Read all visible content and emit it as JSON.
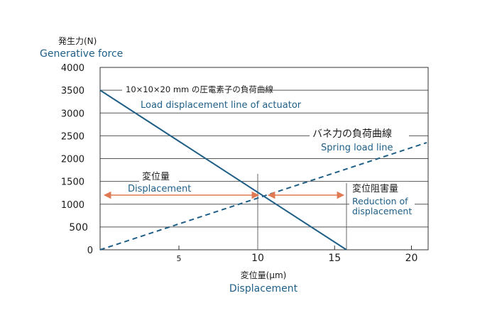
{
  "chart_data": {
    "type": "line",
    "ylabel_jp": "発生力(N)",
    "ylabel_en": "Generative force",
    "xlabel_jp": "変位量(μm)",
    "xlabel_en": "Displacement",
    "xlim": [
      0,
      20
    ],
    "ylim": [
      0,
      4000
    ],
    "yticks": [
      {
        "value": 0,
        "label": "0"
      },
      {
        "value": 500,
        "label": "500"
      },
      {
        "value": 1000,
        "label": "1000"
      },
      {
        "value": 1500,
        "label": "1500"
      },
      {
        "value": 2000,
        "label": "2000"
      },
      {
        "value": 2500,
        "label": "2500"
      },
      {
        "value": 3000,
        "label": "3000"
      },
      {
        "value": 3500,
        "label": "3500"
      },
      {
        "value": 4000,
        "label": "4000"
      }
    ],
    "xticks": [
      {
        "value": 5,
        "label": "5"
      },
      {
        "value": 10,
        "label": "10"
      },
      {
        "value": 15,
        "label": "15"
      },
      {
        "value": 20,
        "label": "20"
      }
    ],
    "grid": "horizontal",
    "series": [
      {
        "name_jp": "10×10×20 mm の圧電素子の負荷曲線",
        "name_en": "Load displacement line of actuator",
        "style": "solid",
        "color": "#1f5f87",
        "x": [
          0,
          15
        ],
        "y": [
          3500,
          0
        ]
      },
      {
        "name_jp": "バネ力の負荷曲線",
        "name_en": "Spring load line",
        "style": "dashed",
        "color": "#1f5f87",
        "x": [
          0,
          20
        ],
        "y": [
          0,
          2350
        ]
      }
    ],
    "annotations": {
      "displacement": {
        "jp": "変位量",
        "en": "Displacement",
        "from": 0,
        "to": 10,
        "y": 1170,
        "color": "#e07a52"
      },
      "reduction": {
        "jp": "変位阻害量",
        "en": "Reduction of displacement",
        "from": 10,
        "to": 15,
        "y": 1170,
        "color": "#e07a52"
      },
      "marker_x": [
        10,
        15
      ]
    }
  }
}
